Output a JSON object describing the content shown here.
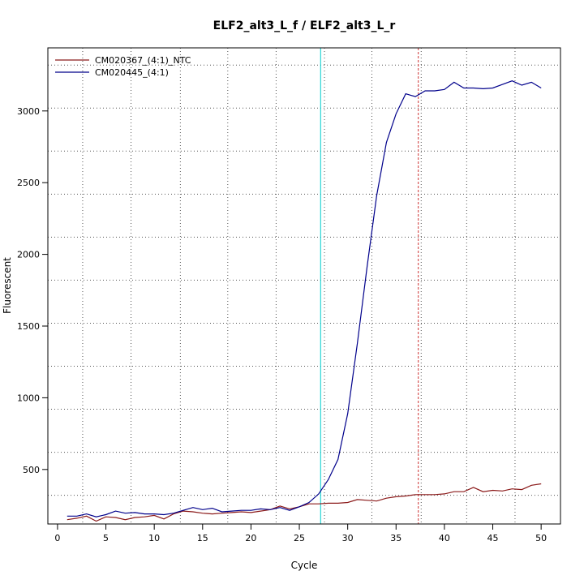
{
  "chart_data": {
    "type": "line",
    "title": "ELF2_alt3_L_f / ELF2_alt3_L_r",
    "xlabel": "Cycle",
    "ylabel": "Fluorescent",
    "xlim": [
      -1.0,
      52.0
    ],
    "ylim": [
      120,
      3440
    ],
    "x_ticks": [
      0,
      5,
      10,
      15,
      20,
      25,
      30,
      35,
      40,
      45,
      50
    ],
    "y_ticks": [
      500,
      1000,
      1500,
      2000,
      2500,
      3000
    ],
    "grid": {
      "vertical_dotted_x": [
        2.6,
        7.6,
        12.7,
        17.6,
        22.6,
        27.6,
        32.5,
        37.6,
        42.3,
        47.3
      ],
      "horizontal_dotted_y": [
        320,
        620,
        920,
        1220,
        1520,
        1820,
        2120,
        2420,
        2720,
        3020,
        3320
      ]
    },
    "legend_position": "top-left",
    "threshold_lines": [
      {
        "x": 27.2,
        "color": "#00CDCD"
      },
      {
        "x": 37.3,
        "color": "#CD3333"
      }
    ],
    "x": [
      1,
      2,
      3,
      4,
      5,
      6,
      7,
      8,
      9,
      10,
      11,
      12,
      13,
      14,
      15,
      16,
      17,
      18,
      19,
      20,
      21,
      22,
      23,
      24,
      25,
      26,
      27,
      28,
      29,
      30,
      31,
      32,
      33,
      34,
      35,
      36,
      37,
      38,
      39,
      40,
      41,
      42,
      43,
      44,
      45,
      46,
      47,
      48,
      49,
      50
    ],
    "series": [
      {
        "name": "CM020367_(4:1)_NTC",
        "color": "#8B1A1A",
        "values": [
          150,
          160,
          175,
          140,
          170,
          165,
          150,
          165,
          170,
          180,
          155,
          190,
          210,
          205,
          195,
          190,
          195,
          200,
          205,
          200,
          210,
          220,
          245,
          225,
          240,
          260,
          260,
          265,
          265,
          270,
          290,
          285,
          280,
          300,
          310,
          315,
          325,
          325,
          325,
          330,
          345,
          345,
          375,
          345,
          355,
          350,
          365,
          360,
          390,
          400
        ]
      },
      {
        "name": "CM020445_(4:1)",
        "color": "#00008B",
        "values": [
          175,
          175,
          190,
          170,
          185,
          210,
          195,
          200,
          190,
          190,
          185,
          195,
          215,
          235,
          220,
          230,
          205,
          210,
          215,
          215,
          225,
          220,
          235,
          215,
          240,
          270,
          330,
          430,
          570,
          890,
          1380,
          1910,
          2410,
          2780,
          2980,
          3120,
          3100,
          3140,
          3140,
          3150,
          3200,
          3160,
          3160,
          3155,
          3160,
          3185,
          3210,
          3180,
          3200,
          3160
        ]
      }
    ]
  }
}
